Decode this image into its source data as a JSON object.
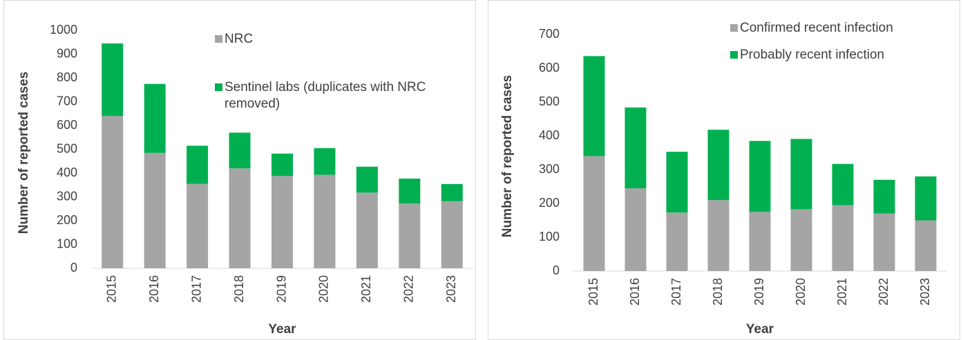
{
  "chart_data": [
    {
      "type": "bar",
      "stacked": true,
      "ylabel": "Number of reported cases",
      "xlabel": "Year",
      "categories": [
        "2015",
        "2016",
        "2017",
        "2018",
        "2019",
        "2020",
        "2021",
        "2022",
        "2023"
      ],
      "series": [
        {
          "name": "NRC",
          "color": "#a5a5a5",
          "values": [
            640,
            485,
            355,
            420,
            388,
            393,
            318,
            272,
            282
          ]
        },
        {
          "name": "Sentinel labs (duplicates with NRC removed)",
          "color": "#00b050",
          "values": [
            305,
            290,
            160,
            150,
            94,
            112,
            109,
            105,
            72
          ]
        }
      ],
      "ylim": [
        0,
        1000
      ],
      "yticks": [
        0,
        100,
        200,
        300,
        400,
        500,
        600,
        700,
        800,
        900,
        1000
      ]
    },
    {
      "type": "bar",
      "stacked": true,
      "ylabel": "Number of reported cases",
      "xlabel": "Year",
      "categories": [
        "2015",
        "2016",
        "2017",
        "2018",
        "2019",
        "2020",
        "2021",
        "2022",
        "2023"
      ],
      "series": [
        {
          "name": "Confirmed recent infection",
          "color": "#a5a5a5",
          "values": [
            340,
            245,
            173,
            210,
            175,
            183,
            195,
            170,
            150
          ]
        },
        {
          "name": "Probably recent infection",
          "color": "#00b050",
          "values": [
            296,
            239,
            180,
            208,
            210,
            208,
            122,
            100,
            130
          ]
        }
      ],
      "ylim": [
        0,
        700
      ],
      "yticks": [
        0,
        100,
        200,
        300,
        400,
        500,
        600,
        700
      ]
    }
  ]
}
